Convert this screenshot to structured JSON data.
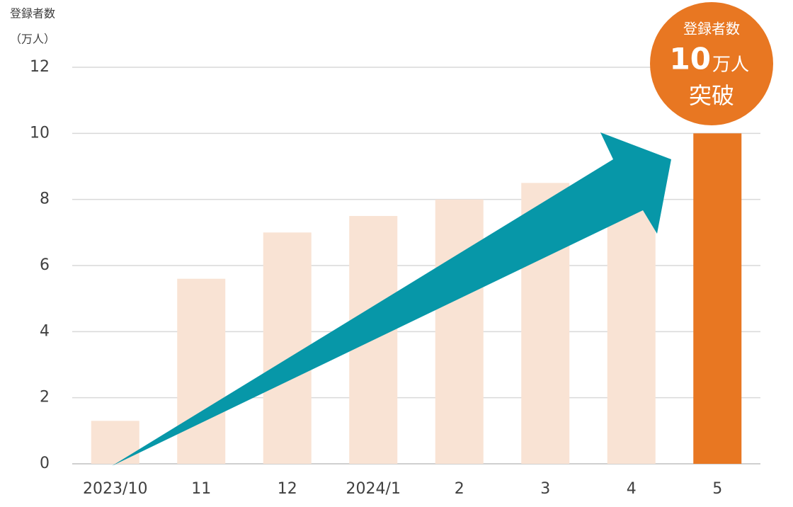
{
  "chart_data": {
    "type": "bar",
    "y_label_line1": "登録者数",
    "y_label_line2": "（万人）",
    "categories": [
      "2023/10",
      "11",
      "12",
      "2024/1",
      "2",
      "3",
      "4",
      "5"
    ],
    "values": [
      1.3,
      5.6,
      7.0,
      7.5,
      8.0,
      8.5,
      9.0,
      10.0
    ],
    "colors": [
      "#f9e3d4",
      "#f9e3d4",
      "#f9e3d4",
      "#f9e3d4",
      "#f9e3d4",
      "#f9e3d4",
      "#f9e3d4",
      "#e87722"
    ],
    "ylim": [
      0,
      12
    ],
    "yticks": [
      0,
      2,
      4,
      6,
      8,
      10,
      12
    ],
    "grid": true,
    "badge": {
      "line1": "登録者数",
      "number": 10,
      "unit": "万人",
      "line2": "突破"
    }
  }
}
